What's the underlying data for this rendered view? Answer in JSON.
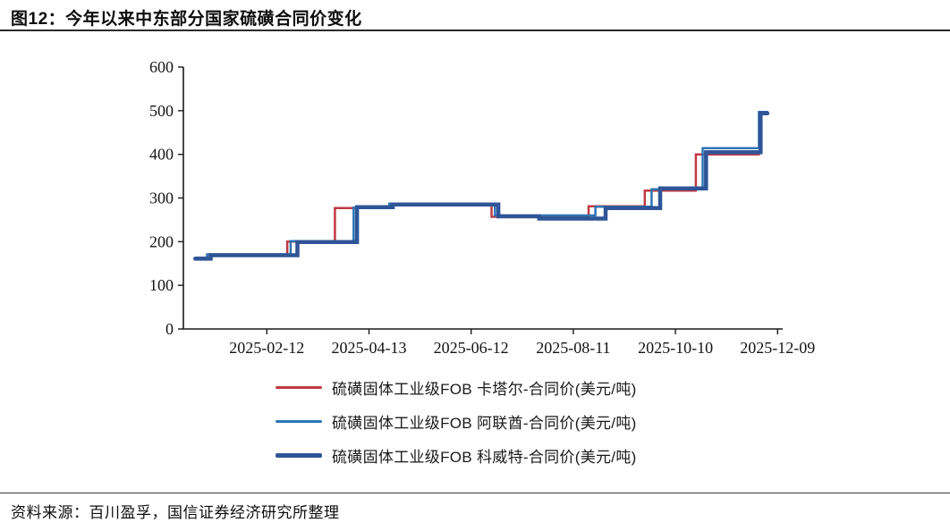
{
  "page": {
    "title": "图12：今年以来中东部分国家硫磺合同价变化",
    "source_note": "资料来源：百川盈孚，国信证券经济研究所整理"
  },
  "colors": {
    "qatar_red": "#BE3A41",
    "uae_blue": "#2E74B5",
    "kuwait_navy": "#2F5597",
    "axis": "#1A1A1A",
    "background": "#FFFFFF"
  },
  "chart_data": {
    "type": "line",
    "step": "after",
    "title": "今年以来中东部分国家硫磺合同价变化",
    "xlabel": "",
    "ylabel": "",
    "unit": "美元/吨",
    "grid": false,
    "legend_position": "bottom",
    "ylim": [
      0,
      600
    ],
    "yticks": [
      0,
      100,
      200,
      300,
      400,
      500,
      600
    ],
    "x_domain_days": [
      -6,
      346
    ],
    "xticks": [
      {
        "day": 43,
        "label": "2025-02-12"
      },
      {
        "day": 103,
        "label": "2025-04-13"
      },
      {
        "day": 163,
        "label": "2025-06-12"
      },
      {
        "day": 223,
        "label": "2025-08-11"
      },
      {
        "day": 283,
        "label": "2025-10-10"
      },
      {
        "day": 343,
        "label": "2025-12-09"
      }
    ],
    "series": [
      {
        "name": "硫磺固体工业级FOB 卡塔尔-合同价(美元/吨)",
        "color": "#BE3A41",
        "stroke_width": 2.5,
        "legend_swatch_height": 3,
        "points": [
          {
            "date": "2025-01-01",
            "day": 1,
            "value": 162
          },
          {
            "date": "2025-01-08",
            "day": 8,
            "value": 170
          },
          {
            "date": "2025-02-24",
            "day": 55,
            "value": 200
          },
          {
            "date": "2025-03-24",
            "day": 83,
            "value": 277
          },
          {
            "date": "2025-04-25",
            "day": 115,
            "value": 286
          },
          {
            "date": "2025-06-24",
            "day": 175,
            "value": 257
          },
          {
            "date": "2025-08-20",
            "day": 232,
            "value": 281
          },
          {
            "date": "2025-09-22",
            "day": 265,
            "value": 317
          },
          {
            "date": "2025-10-22",
            "day": 295,
            "value": 400
          },
          {
            "date": "2025-11-28",
            "day": 332,
            "value": 400
          }
        ]
      },
      {
        "name": "硫磺固体工业级FOB 阿联酋-合同价(美元/吨)",
        "color": "#2E74B5",
        "stroke_width": 2.5,
        "legend_swatch_height": 3,
        "points": [
          {
            "date": "2025-01-01",
            "day": 1,
            "value": 163
          },
          {
            "date": "2025-01-08",
            "day": 8,
            "value": 171
          },
          {
            "date": "2025-02-26",
            "day": 57,
            "value": 201
          },
          {
            "date": "2025-04-04",
            "day": 94,
            "value": 278
          },
          {
            "date": "2025-04-25",
            "day": 115,
            "value": 287
          },
          {
            "date": "2025-06-26",
            "day": 177,
            "value": 260
          },
          {
            "date": "2025-08-24",
            "day": 236,
            "value": 280
          },
          {
            "date": "2025-09-26",
            "day": 269,
            "value": 320
          },
          {
            "date": "2025-10-26",
            "day": 299,
            "value": 414
          },
          {
            "date": "2025-11-28",
            "day": 332,
            "value": 497
          },
          {
            "date": "2025-12-03",
            "day": 337,
            "value": 497
          }
        ]
      },
      {
        "name": "硫磺固体工业级FOB 科威特-合同价(美元/吨)",
        "color": "#2F5597",
        "stroke_width": 4.5,
        "legend_swatch_height": 5,
        "points": [
          {
            "date": "2025-01-01",
            "day": 1,
            "value": 161
          },
          {
            "date": "2025-01-10",
            "day": 10,
            "value": 169
          },
          {
            "date": "2025-03-02",
            "day": 61,
            "value": 199
          },
          {
            "date": "2025-04-06",
            "day": 96,
            "value": 279
          },
          {
            "date": "2025-04-27",
            "day": 117,
            "value": 285
          },
          {
            "date": "2025-06-28",
            "day": 179,
            "value": 258
          },
          {
            "date": "2025-07-22",
            "day": 203,
            "value": 253
          },
          {
            "date": "2025-08-30",
            "day": 242,
            "value": 277
          },
          {
            "date": "2025-10-01",
            "day": 274,
            "value": 322
          },
          {
            "date": "2025-10-28",
            "day": 301,
            "value": 405
          },
          {
            "date": "2025-11-29",
            "day": 333,
            "value": 494
          },
          {
            "date": "2025-12-03",
            "day": 337,
            "value": 494
          }
        ]
      }
    ]
  }
}
